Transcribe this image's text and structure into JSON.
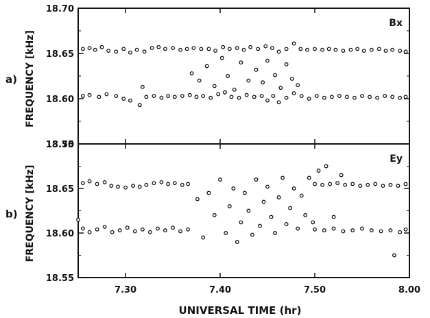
{
  "figure": {
    "xlabel": "UNIVERSAL TIME (hr)",
    "xticks": [
      "7.30",
      "7.40",
      "7.50",
      "8.00"
    ],
    "ink_color": "#111111"
  },
  "chart_data": [
    {
      "type": "scatter",
      "panel_label": "a)",
      "annotation": "Bx",
      "ylabel": "FREQUENCY [kHz]",
      "yticks": [
        "18.70",
        "18.65",
        "18.60",
        "18.55"
      ],
      "ylim": [
        18.55,
        18.7
      ],
      "xlim": [
        7.25,
        7.6
      ],
      "xtick_values": [
        7.3,
        7.4,
        7.5,
        7.6
      ],
      "grid": false,
      "series": [
        {
          "x": [
            7.255,
            7.262,
            7.268,
            7.275,
            7.282,
            7.29,
            7.298,
            7.305,
            7.312,
            7.32,
            7.328,
            7.335,
            7.342,
            7.35,
            7.358,
            7.365,
            7.372,
            7.38,
            7.388,
            7.395,
            7.403,
            7.41,
            7.418,
            7.425,
            7.432,
            7.44,
            7.448,
            7.455,
            7.462,
            7.47,
            7.478,
            7.485,
            7.492,
            7.5,
            7.508,
            7.515,
            7.522,
            7.53,
            7.538,
            7.545,
            7.552,
            7.56,
            7.568,
            7.575,
            7.582,
            7.59,
            7.596
          ],
          "y": [
            18.655,
            18.656,
            18.654,
            18.657,
            18.653,
            18.652,
            18.655,
            18.651,
            18.654,
            18.652,
            18.656,
            18.657,
            18.655,
            18.656,
            18.654,
            18.655,
            18.656,
            18.655,
            18.655,
            18.653,
            18.657,
            18.655,
            18.656,
            18.654,
            18.657,
            18.655,
            18.658,
            18.656,
            18.652,
            18.655,
            18.661,
            18.655,
            18.654,
            18.655,
            18.654,
            18.655,
            18.654,
            18.653,
            18.654,
            18.655,
            18.653,
            18.654,
            18.655,
            18.653,
            18.654,
            18.653,
            18.652
          ]
        },
        {
          "x": [
            7.255,
            7.262,
            7.272,
            7.28,
            7.29,
            7.298,
            7.305,
            7.315,
            7.322,
            7.33,
            7.338,
            7.345,
            7.352,
            7.36,
            7.368,
            7.375,
            7.382,
            7.39,
            7.398,
            7.405,
            7.412,
            7.42,
            7.428,
            7.436,
            7.444,
            7.45,
            7.456,
            7.462,
            7.47,
            7.478,
            7.486,
            7.494,
            7.502,
            7.51,
            7.518,
            7.526,
            7.534,
            7.542,
            7.55,
            7.558,
            7.566,
            7.574,
            7.582,
            7.59,
            7.596
          ],
          "y": [
            18.603,
            18.604,
            18.602,
            18.605,
            18.603,
            18.6,
            18.598,
            18.593,
            18.602,
            18.603,
            18.601,
            18.603,
            18.602,
            18.603,
            18.604,
            18.602,
            18.603,
            18.601,
            18.605,
            18.607,
            18.602,
            18.601,
            18.604,
            18.602,
            18.603,
            18.598,
            18.603,
            18.596,
            18.601,
            18.606,
            18.603,
            18.6,
            18.603,
            18.601,
            18.602,
            18.603,
            18.602,
            18.601,
            18.603,
            18.602,
            18.601,
            18.603,
            18.602,
            18.601,
            18.602
          ]
        },
        {
          "x": [
            7.318,
            7.37,
            7.378,
            7.386,
            7.394,
            7.402,
            7.408,
            7.415,
            7.422,
            7.43,
            7.438,
            7.445,
            7.45,
            7.458,
            7.464,
            7.47,
            7.476,
            7.482
          ],
          "y": [
            18.613,
            18.628,
            18.62,
            18.636,
            18.614,
            18.645,
            18.625,
            18.61,
            18.64,
            18.62,
            18.632,
            18.618,
            18.642,
            18.626,
            18.612,
            18.638,
            18.622,
            18.615
          ]
        }
      ]
    },
    {
      "type": "scatter",
      "panel_label": "b)",
      "annotation": "Ey",
      "ylabel": "FREQUENCY [kHz]",
      "yticks": [
        "18.70",
        "18.65",
        "18.60",
        "18.55"
      ],
      "ylim": [
        18.55,
        18.7
      ],
      "xlim": [
        7.25,
        7.6
      ],
      "xtick_values": [
        7.3,
        7.4,
        7.5,
        7.6
      ],
      "grid": false,
      "series": [
        {
          "x": [
            7.255,
            7.262,
            7.27,
            7.278,
            7.285,
            7.292,
            7.3,
            7.308,
            7.315,
            7.322,
            7.33,
            7.338,
            7.345,
            7.352,
            7.36,
            7.366,
            7.5,
            7.508,
            7.516,
            7.524,
            7.532,
            7.54,
            7.548,
            7.556,
            7.564,
            7.572,
            7.58,
            7.588,
            7.596
          ],
          "y": [
            18.656,
            18.658,
            18.655,
            18.657,
            18.653,
            18.652,
            18.651,
            18.653,
            18.652,
            18.654,
            18.656,
            18.657,
            18.655,
            18.656,
            18.654,
            18.655,
            18.655,
            18.654,
            18.655,
            18.656,
            18.654,
            18.655,
            18.653,
            18.654,
            18.655,
            18.653,
            18.654,
            18.653,
            18.655
          ]
        },
        {
          "x": [
            7.255,
            7.262,
            7.27,
            7.278,
            7.286,
            7.294,
            7.302,
            7.31,
            7.318,
            7.326,
            7.334,
            7.342,
            7.35,
            7.358,
            7.366,
            7.5,
            7.51,
            7.52,
            7.53,
            7.54,
            7.55,
            7.56,
            7.57,
            7.58,
            7.59,
            7.596
          ],
          "y": [
            18.605,
            18.601,
            18.604,
            18.607,
            18.601,
            18.603,
            18.606,
            18.602,
            18.604,
            18.601,
            18.605,
            18.603,
            18.606,
            18.602,
            18.604,
            18.604,
            18.603,
            18.605,
            18.602,
            18.603,
            18.605,
            18.603,
            18.602,
            18.603,
            18.601,
            18.604
          ]
        },
        {
          "x": [
            7.25,
            7.376,
            7.382,
            7.388,
            7.394,
            7.4,
            7.406,
            7.41,
            7.414,
            7.418,
            7.422,
            7.426,
            7.43,
            7.434,
            7.438,
            7.442,
            7.446,
            7.45,
            7.454,
            7.458,
            7.462,
            7.466,
            7.47,
            7.474,
            7.478,
            7.482,
            7.486,
            7.49,
            7.494,
            7.498,
            7.504,
            7.512,
            7.52,
            7.528,
            7.584
          ],
          "y": [
            18.615,
            18.638,
            18.595,
            18.645,
            18.62,
            18.66,
            18.6,
            18.63,
            18.65,
            18.59,
            18.612,
            18.645,
            18.625,
            18.598,
            18.66,
            18.608,
            18.635,
            18.652,
            18.618,
            18.6,
            18.64,
            18.662,
            18.61,
            18.628,
            18.65,
            18.605,
            18.642,
            18.62,
            18.662,
            18.612,
            18.67,
            18.675,
            18.618,
            18.665,
            18.575
          ]
        }
      ]
    }
  ]
}
